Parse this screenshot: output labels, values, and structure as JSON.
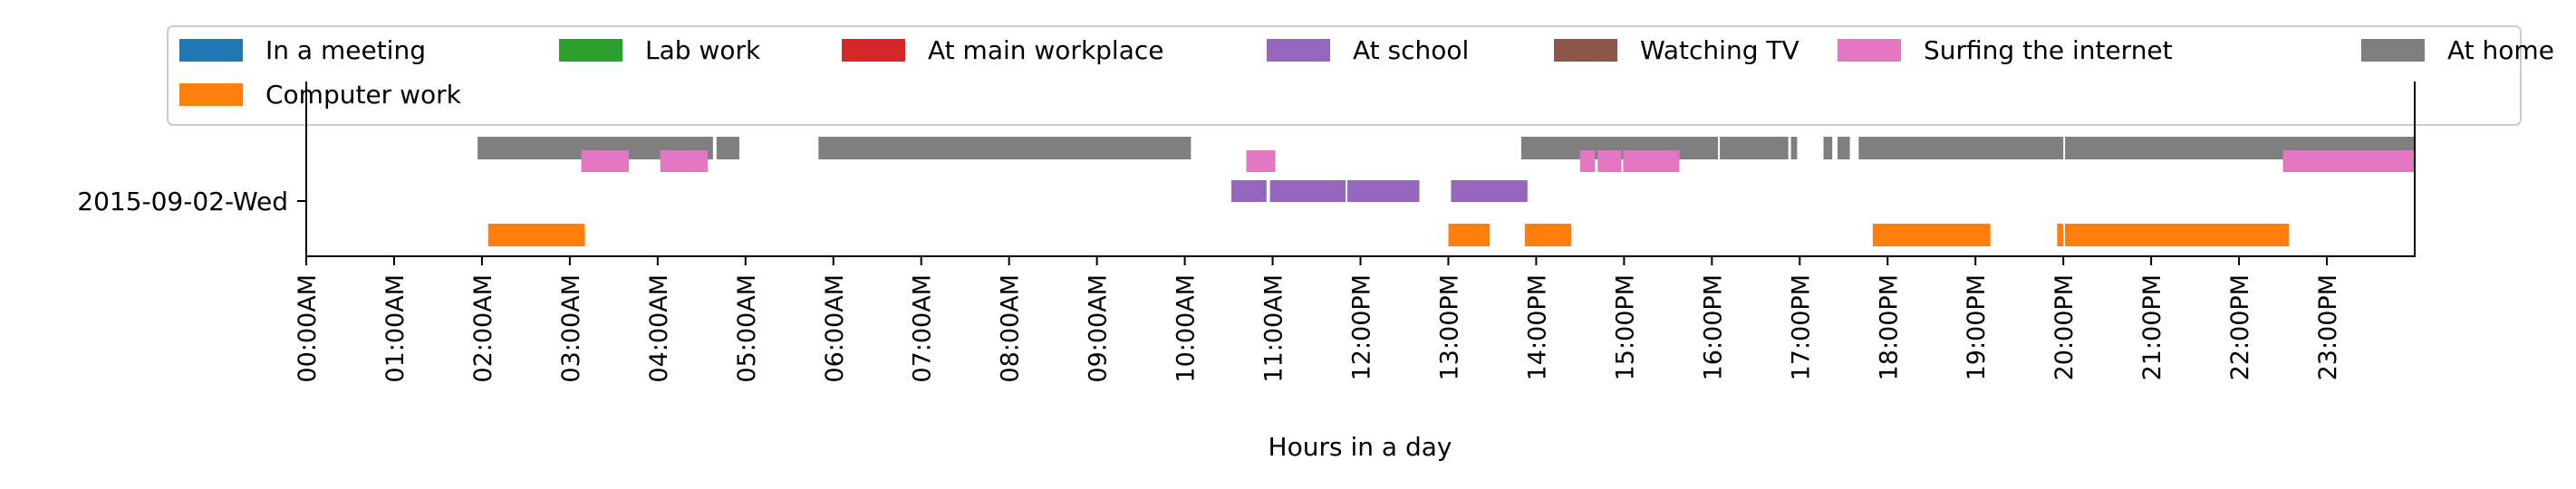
{
  "chart_data": {
    "type": "timeline",
    "title": "",
    "xlabel": "Hours in a day",
    "ylabel": "",
    "x_range": [
      0,
      24
    ],
    "xtick_labels": [
      "00:00AM",
      "01:00AM",
      "02:00AM",
      "03:00AM",
      "04:00AM",
      "05:00AM",
      "06:00AM",
      "07:00AM",
      "08:00AM",
      "09:00AM",
      "10:00AM",
      "11:00AM",
      "12:00PM",
      "13:00PM",
      "14:00PM",
      "15:00PM",
      "16:00PM",
      "17:00PM",
      "18:00PM",
      "19:00PM",
      "20:00PM",
      "21:00PM",
      "22:00PM",
      "23:00PM"
    ],
    "ytick_labels": [
      "2015-09-02-Wed"
    ],
    "grid": false,
    "legend_position": "top",
    "legend": [
      {
        "name": "In a meeting",
        "color": "#1f77b4"
      },
      {
        "name": "Computer work",
        "color": "#ff7f0e"
      },
      {
        "name": "Lab work",
        "color": "#2ca02c"
      },
      {
        "name": "At main workplace",
        "color": "#d62728"
      },
      {
        "name": "At school",
        "color": "#9467bd"
      },
      {
        "name": "Watching TV",
        "color": "#8c564b"
      },
      {
        "name": "Surfing the internet",
        "color": "#e377c2"
      },
      {
        "name": "At home",
        "color": "#7f7f7f"
      }
    ],
    "series": [
      {
        "name": "At home",
        "color": "#7f7f7f",
        "lane": "top",
        "intervals": [
          [
            1.95,
            4.63
          ],
          [
            4.67,
            4.93
          ],
          [
            5.83,
            10.07
          ],
          [
            13.83,
            16.07
          ],
          [
            16.09,
            16.87
          ],
          [
            16.9,
            16.97
          ],
          [
            17.27,
            17.37
          ],
          [
            17.43,
            17.57
          ],
          [
            17.67,
            20.0
          ],
          [
            20.02,
            24.0
          ]
        ]
      },
      {
        "name": "Surfing the internet",
        "color": "#e377c2",
        "lane": "upper",
        "intervals": [
          [
            3.13,
            3.67
          ],
          [
            4.03,
            4.57
          ],
          [
            10.7,
            11.03
          ],
          [
            14.5,
            14.67
          ],
          [
            14.7,
            14.97
          ],
          [
            14.99,
            15.63
          ],
          [
            22.5,
            24.0
          ]
        ]
      },
      {
        "name": "At school",
        "color": "#9467bd",
        "lane": "middle",
        "intervals": [
          [
            10.53,
            10.93
          ],
          [
            10.97,
            11.83
          ],
          [
            11.85,
            12.67
          ],
          [
            13.03,
            13.9
          ]
        ]
      },
      {
        "name": "Computer work",
        "color": "#ff7f0e",
        "lane": "bottom",
        "intervals": [
          [
            2.07,
            3.17
          ],
          [
            13.0,
            13.47
          ],
          [
            13.87,
            14.4
          ],
          [
            17.83,
            19.17
          ],
          [
            19.93,
            20.0
          ],
          [
            20.02,
            22.57
          ]
        ]
      }
    ]
  }
}
